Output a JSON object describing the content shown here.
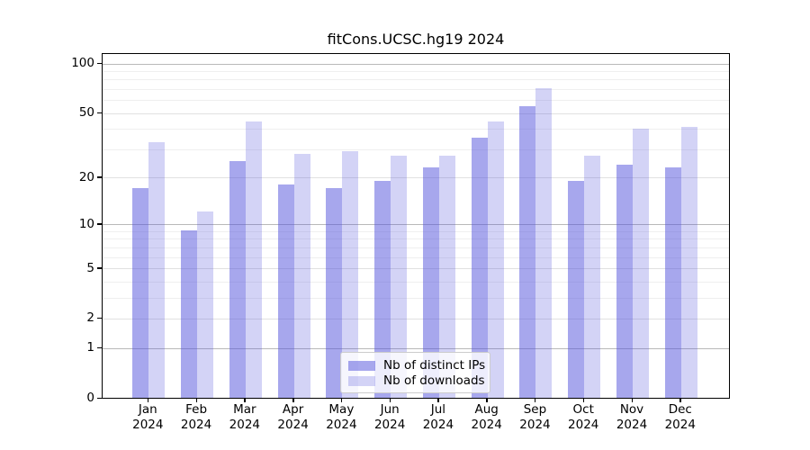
{
  "chart_data": {
    "type": "bar",
    "title": "fitCons.UCSC.hg19 2024",
    "x_months": [
      "Jan",
      "Feb",
      "Mar",
      "Apr",
      "May",
      "Jun",
      "Jul",
      "Aug",
      "Sep",
      "Oct",
      "Nov",
      "Dec"
    ],
    "x_year": "2024",
    "categories": [
      "Jan 2024",
      "Feb 2024",
      "Mar 2024",
      "Apr 2024",
      "May 2024",
      "Jun 2024",
      "Jul 2024",
      "Aug 2024",
      "Sep 2024",
      "Oct 2024",
      "Nov 2024",
      "Dec 2024"
    ],
    "series": [
      {
        "name": "Nb of distinct IPs",
        "color": "rgba(80,80,220,0.5)",
        "values": [
          17,
          9,
          25,
          18,
          17,
          19,
          23,
          35,
          55,
          19,
          24,
          23
        ]
      },
      {
        "name": "Nb of downloads",
        "color": "rgba(80,80,220,0.25)",
        "values": [
          33,
          12,
          44,
          28,
          29,
          27,
          27,
          44,
          70,
          27,
          40,
          41
        ]
      }
    ],
    "yscale": "log1p",
    "ylim": [
      0,
      115
    ],
    "yticks_labeled": [
      0,
      1,
      2,
      5,
      10,
      20,
      50,
      100
    ],
    "yticks_decade": [
      1,
      10,
      100
    ],
    "yticks_minor": [
      3,
      4,
      6,
      7,
      8,
      9,
      30,
      40,
      60,
      70,
      80,
      90
    ],
    "grid": "horizontal",
    "legend_position": "bottom-center",
    "xlabel": "",
    "ylabel": ""
  },
  "colors": {
    "background": "#ffffff",
    "spine": "#000000",
    "grid_major": "#e1e1e1",
    "grid_decade": "#b9b9b9",
    "grid_minor": "#efefef",
    "text": "#000000"
  }
}
